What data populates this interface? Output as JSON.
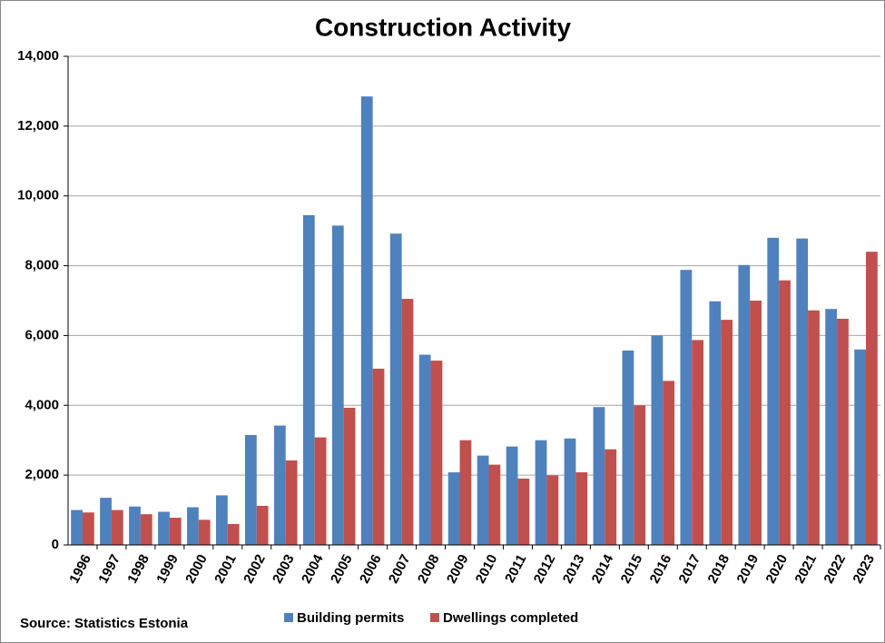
{
  "chart_data": {
    "type": "bar",
    "title": "Construction Activity",
    "source": "Source: Statistics Estonia",
    "categories": [
      "1996",
      "1997",
      "1998",
      "1999",
      "2000",
      "2001",
      "2002",
      "2003",
      "2004",
      "2005",
      "2006",
      "2007",
      "2008",
      "2009",
      "2010",
      "2011",
      "2012",
      "2013",
      "2014",
      "2015",
      "2016",
      "2017",
      "2018",
      "2019",
      "2020",
      "2021",
      "2022",
      "2023"
    ],
    "series": [
      {
        "name": "Building permits",
        "color": "#4f81bd",
        "values": [
          1000,
          1350,
          1100,
          950,
          1080,
          1420,
          3150,
          3420,
          9450,
          9150,
          12850,
          8920,
          5450,
          2080,
          2560,
          2820,
          3000,
          3050,
          3950,
          5570,
          6000,
          7880,
          6980,
          8020,
          8800,
          8780,
          6760,
          5600
        ]
      },
      {
        "name": "Dwellings completed",
        "color": "#c0504d",
        "values": [
          930,
          1000,
          880,
          780,
          720,
          600,
          1120,
          2420,
          3080,
          3930,
          5050,
          7050,
          5280,
          3000,
          2300,
          1900,
          1990,
          2080,
          2740,
          4000,
          4700,
          5870,
          6450,
          7000,
          7580,
          6720,
          6480,
          8400
        ]
      }
    ],
    "ylim": [
      0,
      14000
    ],
    "yticks": [
      0,
      {
        "value": 2000,
        "label": "2,000"
      },
      {
        "value": 4000,
        "label": "4,000"
      },
      {
        "value": 6000,
        "label": "6,000"
      },
      {
        "value": 8000,
        "label": "8,000"
      },
      {
        "value": 10000,
        "label": "10,000"
      },
      {
        "value": 12000,
        "label": "12,000"
      },
      {
        "value": 14000,
        "label": "14,000"
      }
    ],
    "grid": true,
    "legend": "bottom"
  }
}
